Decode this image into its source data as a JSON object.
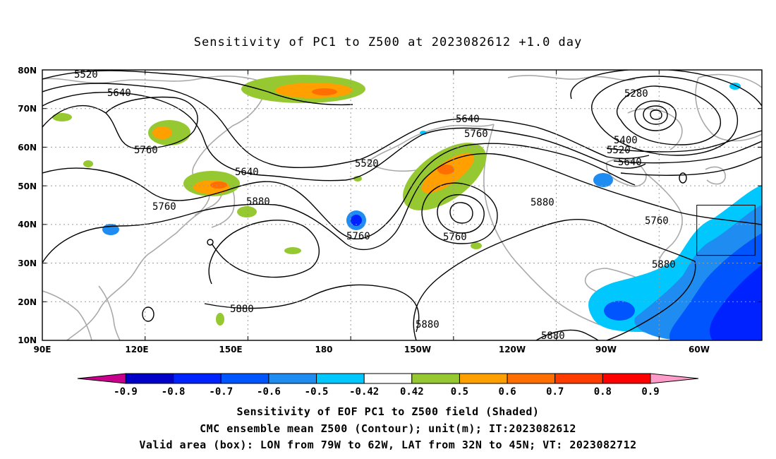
{
  "title": "Sensitivity of PC1 to Z500 at 2023082612 +1.0 day",
  "map": {
    "lon_range": [
      90,
      300
    ],
    "lat_range": [
      10,
      80
    ],
    "lat_ticks": [
      "80N",
      "70N",
      "60N",
      "50N",
      "40N",
      "30N",
      "20N",
      "10N"
    ],
    "lon_ticks": [
      "90E",
      "120E",
      "150E",
      "180",
      "150W",
      "120W",
      "90W",
      "60W"
    ],
    "contour_labels": [
      "5520",
      "5640",
      "5760",
      "5640",
      "5760",
      "5520",
      "5640",
      "5760",
      "5280",
      "5400",
      "5520",
      "5640",
      "5880",
      "5760",
      "5760",
      "5880",
      "5880",
      "5880",
      "5760",
      "5880",
      "5880"
    ],
    "valid_box": {
      "lon": [
        281,
        298
      ],
      "lat": [
        32,
        45
      ]
    },
    "contour_color": "#000000",
    "coast_color": "#a9a9a9"
  },
  "colorbar": {
    "labels": [
      "-0.9",
      "-0.8",
      "-0.7",
      "-0.6",
      "-0.5",
      "-0.42",
      "0.42",
      "0.5",
      "0.6",
      "0.7",
      "0.8",
      "0.9"
    ],
    "colors": [
      "#0000c8",
      "#0022ff",
      "#0055ff",
      "#1e8cf0",
      "#00c8ff",
      "#ffffff",
      "#96c832",
      "#ffa000",
      "#ff6e00",
      "#ff3c00",
      "#ff0000"
    ],
    "low_end_color": "#c8008c",
    "high_end_color": "#ff9bc8"
  },
  "caption": {
    "line1": "Sensitivity of EOF PC1 to Z500 field (Shaded)",
    "line2": "CMC ensemble mean Z500 (Contour); unit(m); IT:2023082612",
    "line3": "Valid area (box): LON from 79W to 62W, LAT from 32N to 45N; VT: 2023082712"
  }
}
